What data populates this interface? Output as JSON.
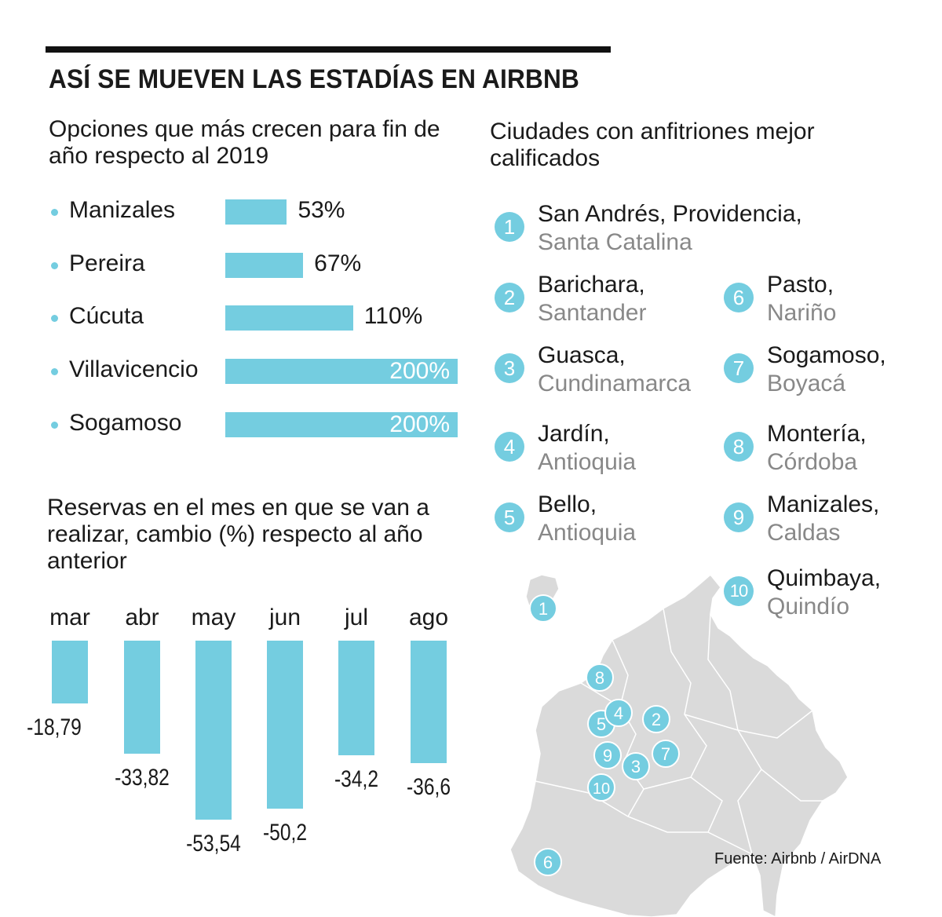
{
  "header": {
    "title": "ASÍ SE MUEVEN LAS ESTADÍAS EN AIRBNB"
  },
  "colors": {
    "accent": "#74cde0",
    "text": "#1a1a1a",
    "muted": "#888888",
    "map": "#dadada"
  },
  "chart_data": [
    {
      "type": "bar",
      "orientation": "horizontal",
      "title": "Opciones que más crecen para fin de año respecto al 2019",
      "categories": [
        "Manizales",
        "Pereira",
        "Cúcuta",
        "Villavicencio",
        "Sogamoso"
      ],
      "values": [
        53,
        67,
        110,
        200,
        200
      ],
      "labels": [
        "53%",
        "67%",
        "110%",
        "200%",
        "200%"
      ],
      "unit": "%",
      "xlim": [
        0,
        200
      ]
    },
    {
      "type": "bar",
      "orientation": "vertical",
      "title": "Reservas en el mes en que se van a realizar, cambio (%) respecto al año anterior",
      "categories": [
        "mar",
        "abr",
        "may",
        "jun",
        "jul",
        "ago"
      ],
      "values": [
        -18.79,
        -33.82,
        -53.54,
        -50.2,
        -34.2,
        -36.6
      ],
      "labels": [
        "-18,79",
        "-33,82",
        "-53,54",
        "-50,2",
        "-34,2",
        "-36,6"
      ],
      "ylim": [
        -55,
        0
      ]
    }
  ],
  "ranking": {
    "title": "Ciudades con anfitriones mejor calificados",
    "items": [
      {
        "rank": "1",
        "city": "San Andrés, Providencia,",
        "region": "Santa Catalina"
      },
      {
        "rank": "2",
        "city": "Barichara,",
        "region": "Santander"
      },
      {
        "rank": "3",
        "city": "Guasca,",
        "region": "Cundinamarca"
      },
      {
        "rank": "4",
        "city": "Jardín,",
        "region": "Antioquia"
      },
      {
        "rank": "5",
        "city": "Bello,",
        "region": "Antioquia"
      },
      {
        "rank": "6",
        "city": "Pasto,",
        "region": "Nariño"
      },
      {
        "rank": "7",
        "city": "Sogamoso,",
        "region": "Boyacá"
      },
      {
        "rank": "8",
        "city": "Montería,",
        "region": "Córdoba"
      },
      {
        "rank": "9",
        "city": "Manizales,",
        "region": "Caldas"
      },
      {
        "rank": "10",
        "city": "Quimbaya,",
        "region": "Quindío"
      }
    ]
  },
  "map": {
    "markers": [
      "1",
      "8",
      "5",
      "4",
      "2",
      "9",
      "3",
      "7",
      "10",
      "6"
    ]
  },
  "source": "Fuente: Airbnb / AirDNA"
}
